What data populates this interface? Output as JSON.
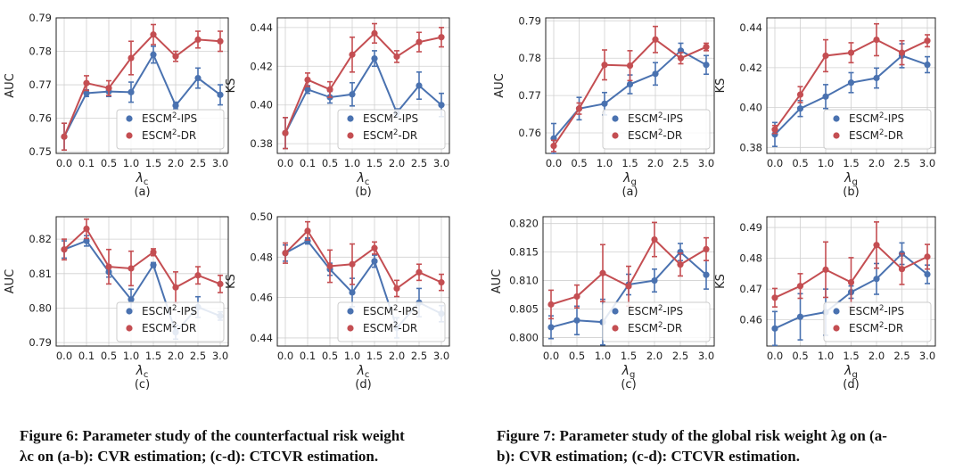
{
  "colors": {
    "ips": "#4a72b0",
    "dr": "#c44e52",
    "grid": "#d0d0d0",
    "frame": "#222222"
  },
  "captions": {
    "fig6": {
      "line1": "Figure 6: Parameter study of the counterfactual risk weight",
      "line2": "λc on (a-b): CVR estimation; (c-d): CTCVR estimation."
    },
    "fig7": {
      "line1": "Figure 7: Parameter study of the global risk weight λg on (a-",
      "line2": "b): CVR estimation; (c-d): CTCVR estimation."
    }
  },
  "chart_data": [
    {
      "id": "f6a",
      "type": "line",
      "xlabel": "λc",
      "sublabel": "(a)",
      "ylabel": "AUC",
      "categories": [
        "0.0",
        "0.1",
        "0.5",
        "1.0",
        "1.5",
        "2.0",
        "2.5",
        "3.0"
      ],
      "ylim": [
        0.7495,
        0.79
      ],
      "yticks": [
        "0.75",
        "0.76",
        "0.77",
        "0.78",
        "0.79"
      ],
      "yticksv": [
        0.75,
        0.76,
        0.77,
        0.78,
        0.79
      ],
      "legend": [
        "ESCM2-IPS",
        "ESCM2-DR"
      ],
      "series": [
        {
          "name": "ESCM2-IPS",
          "values": [
            0.7545,
            0.7675,
            0.768,
            0.7678,
            0.779,
            0.7638,
            0.772,
            0.767
          ],
          "errors": [
            0.004,
            0.001,
            0.0015,
            0.003,
            0.0025,
            0.001,
            0.003,
            0.003
          ]
        },
        {
          "name": "ESCM2-DR",
          "values": [
            0.7545,
            0.7705,
            0.769,
            0.778,
            0.785,
            0.7785,
            0.7835,
            0.783
          ],
          "errors": [
            0.004,
            0.0022,
            0.0022,
            0.005,
            0.003,
            0.0015,
            0.0025,
            0.003
          ]
        }
      ]
    },
    {
      "id": "f6b",
      "type": "line",
      "xlabel": "λc",
      "sublabel": "(b)",
      "ylabel": "KS",
      "categories": [
        "0.0",
        "0.1",
        "0.5",
        "1.0",
        "1.5",
        "2.0",
        "2.5",
        "3.0"
      ],
      "ylim": [
        0.375,
        0.445
      ],
      "yticks": [
        "0.38",
        "0.40",
        "0.42",
        "0.44"
      ],
      "yticksv": [
        0.38,
        0.4,
        0.42,
        0.44
      ],
      "legend": [
        "ESCM2-IPS",
        "ESCM2-DR"
      ],
      "series": [
        {
          "name": "ESCM2-IPS",
          "values": [
            0.3855,
            0.408,
            0.404,
            0.4055,
            0.424,
            0.396,
            0.41,
            0.4
          ],
          "errors": [
            0.008,
            0.002,
            0.003,
            0.006,
            0.004,
            0.002,
            0.007,
            0.006
          ]
        },
        {
          "name": "ESCM2-DR",
          "values": [
            0.3855,
            0.413,
            0.408,
            0.426,
            0.437,
            0.425,
            0.4325,
            0.435
          ],
          "errors": [
            0.008,
            0.0035,
            0.004,
            0.009,
            0.005,
            0.003,
            0.005,
            0.005
          ]
        }
      ]
    },
    {
      "id": "f6c",
      "type": "line",
      "xlabel": "λc",
      "sublabel": "(c)",
      "ylabel": "AUC",
      "categories": [
        "0.0",
        "0.1",
        "0.5",
        "1.0",
        "1.5",
        "2.0",
        "2.5",
        "3.0"
      ],
      "ylim": [
        0.789,
        0.8265
      ],
      "yticks": [
        "0.79",
        "0.80",
        "0.81",
        "0.82"
      ],
      "yticksv": [
        0.79,
        0.8,
        0.81,
        0.82
      ],
      "legend": [
        "ESCM2-IPS",
        "ESCM2-DR"
      ],
      "series": [
        {
          "name": "ESCM2-IPS",
          "values": [
            0.817,
            0.8195,
            0.8105,
            0.8025,
            0.8125,
            0.793,
            0.8003,
            0.7977
          ],
          "errors": [
            0.0025,
            0.0015,
            0.0015,
            0.003,
            0.0007,
            0.002,
            0.003,
            0.0012
          ]
        },
        {
          "name": "ESCM2-DR",
          "values": [
            0.817,
            0.823,
            0.812,
            0.8115,
            0.8162,
            0.806,
            0.8095,
            0.807
          ],
          "errors": [
            0.003,
            0.0028,
            0.005,
            0.005,
            0.001,
            0.0045,
            0.0025,
            0.0025
          ]
        }
      ]
    },
    {
      "id": "f6d",
      "type": "line",
      "xlabel": "λc",
      "sublabel": "(d)",
      "ylabel": "KS",
      "categories": [
        "0.0",
        "0.1",
        "0.5",
        "1.0",
        "1.5",
        "2.0",
        "2.5",
        "3.0"
      ],
      "ylim": [
        0.436,
        0.5
      ],
      "yticks": [
        "0.44",
        "0.46",
        "0.48",
        "0.50"
      ],
      "yticksv": [
        0.44,
        0.46,
        0.48,
        0.5
      ],
      "legend": [
        "ESCM2-IPS",
        "ESCM2-DR"
      ],
      "series": [
        {
          "name": "ESCM2-IPS",
          "values": [
            0.482,
            0.488,
            0.474,
            0.4625,
            0.478,
            0.445,
            0.4575,
            0.452
          ],
          "errors": [
            0.004,
            0.0015,
            0.003,
            0.007,
            0.003,
            0.005,
            0.007,
            0.004
          ]
        },
        {
          "name": "ESCM2-DR",
          "values": [
            0.482,
            0.493,
            0.4755,
            0.4765,
            0.4845,
            0.4645,
            0.4725,
            0.4675
          ],
          "errors": [
            0.005,
            0.0045,
            0.008,
            0.01,
            0.003,
            0.004,
            0.004,
            0.004
          ]
        }
      ]
    },
    {
      "id": "f7a",
      "type": "line",
      "xlabel": "λg",
      "sublabel": "(a)",
      "ylabel": "AUC",
      "categories": [
        "0.0",
        "0.5",
        "1.0",
        "1.5",
        "2.0",
        "2.5",
        "3.0"
      ],
      "ylim": [
        0.7545,
        0.7908
      ],
      "yticks": [
        "0.76",
        "0.77",
        "0.78",
        "0.79"
      ],
      "yticksv": [
        0.76,
        0.77,
        0.78,
        0.79
      ],
      "legend": [
        "ESCM2-IPS",
        "ESCM2-DR"
      ],
      "series": [
        {
          "name": "ESCM2-IPS",
          "values": [
            0.7585,
            0.7665,
            0.7678,
            0.773,
            0.7758,
            0.782,
            0.7782
          ],
          "errors": [
            0.004,
            0.003,
            0.003,
            0.0025,
            0.003,
            0.002,
            0.0025
          ]
        },
        {
          "name": "ESCM2-DR",
          "values": [
            0.7565,
            0.7665,
            0.7782,
            0.778,
            0.785,
            0.78,
            0.783
          ],
          "errors": [
            0.0015,
            0.0015,
            0.004,
            0.004,
            0.0035,
            0.0015,
            0.001
          ]
        }
      ]
    },
    {
      "id": "f7b",
      "type": "line",
      "xlabel": "λg",
      "sublabel": "(b)",
      "ylabel": "KS",
      "categories": [
        "0.0",
        "0.5",
        "1.0",
        "1.5",
        "2.0",
        "2.5",
        "3.0"
      ],
      "ylim": [
        0.377,
        0.445
      ],
      "yticks": [
        "0.38",
        "0.40",
        "0.42",
        "0.44"
      ],
      "yticksv": [
        0.38,
        0.4,
        0.42,
        0.44
      ],
      "legend": [
        "ESCM2-IPS",
        "ESCM2-DR"
      ],
      "series": [
        {
          "name": "ESCM2-IPS",
          "values": [
            0.3865,
            0.3995,
            0.4055,
            0.4125,
            0.4148,
            0.426,
            0.4215
          ],
          "errors": [
            0.006,
            0.004,
            0.006,
            0.005,
            0.005,
            0.006,
            0.004
          ]
        },
        {
          "name": "ESCM2-DR",
          "values": [
            0.389,
            0.4065,
            0.426,
            0.4275,
            0.434,
            0.4275,
            0.4335
          ],
          "errors": [
            0.002,
            0.004,
            0.008,
            0.005,
            0.008,
            0.006,
            0.003
          ]
        }
      ]
    },
    {
      "id": "f7c",
      "type": "line",
      "xlabel": "λg",
      "sublabel": "(c)",
      "ylabel": "AUC",
      "categories": [
        "0.0",
        "0.5",
        "1.0",
        "1.5",
        "2.0",
        "2.5",
        "3.0"
      ],
      "ylim": [
        0.7985,
        0.8212
      ],
      "yticks": [
        "0.800",
        "0.805",
        "0.810",
        "0.815",
        "0.820"
      ],
      "yticksv": [
        0.8,
        0.805,
        0.81,
        0.815,
        0.82
      ],
      "legend": [
        "ESCM2-IPS",
        "ESCM2-DR"
      ],
      "series": [
        {
          "name": "ESCM2-IPS",
          "values": [
            0.8018,
            0.803,
            0.8027,
            0.8093,
            0.81,
            0.815,
            0.811
          ],
          "errors": [
            0.002,
            0.0025,
            0.004,
            0.0018,
            0.002,
            0.0015,
            0.0025
          ]
        },
        {
          "name": "ESCM2-DR",
          "values": [
            0.8058,
            0.8072,
            0.8113,
            0.809,
            0.8172,
            0.8128,
            0.8155
          ],
          "errors": [
            0.0025,
            0.002,
            0.005,
            0.0035,
            0.003,
            0.002,
            0.002
          ]
        }
      ]
    },
    {
      "id": "f7d",
      "type": "line",
      "xlabel": "λg",
      "sublabel": "(d)",
      "ylabel": "KS",
      "categories": [
        "0.0",
        "0.5",
        "1.0",
        "1.5",
        "2.0",
        "2.5",
        "3.0"
      ],
      "ylim": [
        0.4515,
        0.4935
      ],
      "yticks": [
        "0.46",
        "0.47",
        "0.48",
        "0.49"
      ],
      "yticksv": [
        0.46,
        0.47,
        0.48,
        0.49
      ],
      "legend": [
        "ESCM2-IPS",
        "ESCM2-DR"
      ],
      "series": [
        {
          "name": "ESCM2-IPS",
          "values": [
            0.4572,
            0.461,
            0.4625,
            0.469,
            0.4733,
            0.4815,
            0.4748
          ],
          "errors": [
            0.0055,
            0.0075,
            0.0075,
            0.002,
            0.005,
            0.0035,
            0.003
          ]
        },
        {
          "name": "ESCM2-DR",
          "values": [
            0.4672,
            0.471,
            0.4763,
            0.4722,
            0.4843,
            0.4765,
            0.4805
          ],
          "errors": [
            0.003,
            0.004,
            0.009,
            0.008,
            0.0075,
            0.005,
            0.004
          ]
        }
      ]
    }
  ]
}
